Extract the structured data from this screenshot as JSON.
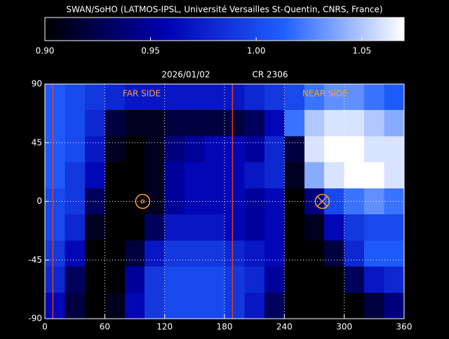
{
  "chart_data": {
    "type": "heatmap",
    "title": "SWAN/SoHO (LATMOS-IPSL, Université Versailles St-Quentin, CNRS, France)",
    "date": "2026/01/02",
    "rotation": "CR 2306",
    "clim": [
      0.9,
      1.07
    ],
    "cticks": [
      {
        "value": 0.9,
        "label": "0.90"
      },
      {
        "value": 0.95,
        "label": "0.95"
      },
      {
        "value": 1.0,
        "label": "1.00"
      },
      {
        "value": 1.05,
        "label": "1.05"
      }
    ],
    "colormap": [
      "#000000",
      "#0000b0",
      "#2060ff",
      "#ffffff"
    ],
    "xlim": [
      0,
      360
    ],
    "xticks": [
      0,
      60,
      120,
      180,
      240,
      300,
      360
    ],
    "ylim": [
      -90,
      90
    ],
    "yticks": [
      -90,
      -45,
      0,
      45,
      90
    ],
    "grid": true,
    "xbins": [
      0,
      20,
      40,
      60,
      80,
      100,
      120,
      140,
      160,
      180,
      200,
      220,
      240,
      260,
      280,
      300,
      320,
      340,
      360
    ],
    "ybins": [
      90,
      70,
      50,
      30,
      10,
      -10,
      -30,
      -50,
      -70,
      -90
    ],
    "z": [
      [
        1.01,
        1.0,
        0.99,
        0.98,
        0.97,
        0.97,
        0.97,
        0.97,
        0.97,
        0.97,
        0.98,
        0.99,
        1.0,
        1.02,
        1.03,
        1.03,
        1.02,
        1.01
      ],
      [
        1.01,
        1.0,
        0.98,
        0.92,
        0.91,
        0.91,
        0.92,
        0.92,
        0.92,
        0.92,
        0.93,
        0.96,
        1.02,
        1.05,
        1.06,
        1.06,
        1.05,
        1.04
      ],
      [
        1.01,
        1.0,
        0.97,
        0.91,
        0.9,
        0.91,
        0.94,
        0.95,
        0.96,
        0.96,
        0.95,
        0.98,
        0.92,
        1.06,
        1.07,
        1.07,
        1.06,
        1.06
      ],
      [
        1.01,
        0.99,
        0.96,
        0.9,
        0.9,
        0.91,
        0.95,
        0.96,
        0.96,
        0.96,
        0.97,
        0.98,
        0.91,
        1.04,
        1.06,
        1.07,
        1.07,
        1.06
      ],
      [
        1.0,
        0.99,
        0.93,
        0.9,
        0.9,
        0.91,
        0.95,
        0.96,
        0.96,
        0.96,
        0.95,
        0.96,
        0.9,
        0.94,
        1.0,
        1.02,
        1.03,
        1.02
      ],
      [
        1.0,
        0.98,
        0.91,
        0.9,
        0.9,
        0.93,
        0.97,
        0.97,
        0.97,
        0.96,
        0.95,
        0.96,
        0.9,
        0.91,
        0.96,
        0.99,
        1.0,
        1.0
      ],
      [
        0.99,
        0.96,
        0.9,
        0.9,
        0.92,
        0.97,
        0.99,
        0.99,
        0.99,
        0.98,
        0.97,
        0.96,
        0.9,
        0.9,
        0.92,
        0.98,
        1.01,
        1.01
      ],
      [
        0.98,
        0.93,
        0.9,
        0.9,
        0.95,
        0.99,
        1.0,
        1.0,
        1.0,
        0.99,
        0.98,
        0.95,
        0.9,
        0.9,
        0.9,
        0.93,
        0.97,
        0.98
      ],
      [
        0.96,
        0.92,
        0.9,
        0.91,
        0.96,
        0.99,
        1.0,
        1.0,
        1.0,
        0.99,
        0.97,
        0.93,
        0.9,
        0.9,
        0.9,
        0.9,
        0.92,
        0.94
      ]
    ],
    "vlines": [
      8,
      188
    ],
    "vline_color": "#e04020",
    "marker_color": "#ffa030",
    "far_side": {
      "label": "FAR SIDE",
      "lon": 98,
      "lat": 0
    },
    "near_side": {
      "label": "NEAR SIDE",
      "lon": 278,
      "lat": 0
    }
  }
}
